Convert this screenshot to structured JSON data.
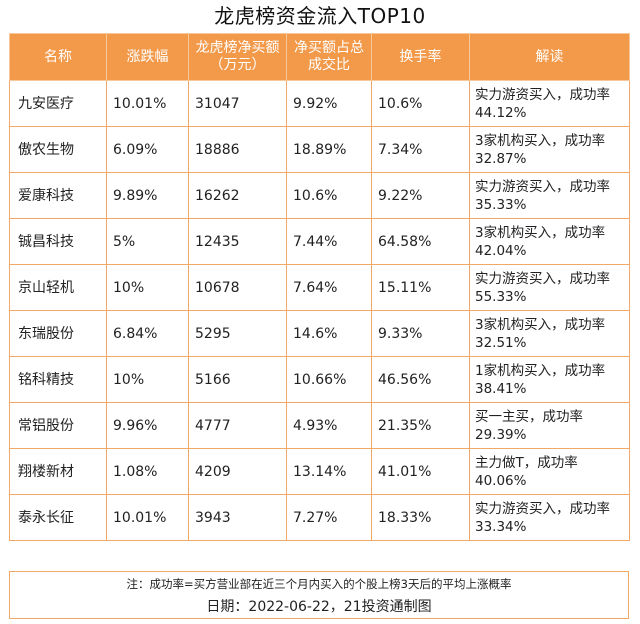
{
  "title": "龙虎榜资金流入TOP10",
  "headers": [
    "名称",
    "涨跌幅",
    "龙虎榜净买额（万元）",
    "净买额占总成交比",
    "换手率",
    "解读"
  ],
  "rows": [
    {
      "name": "九安医疗",
      "change": "10.01%",
      "net_buy": "31047",
      "ratio": "9.92%",
      "turnover": "10.6%",
      "note": "实力游资买入，成功率44.12%"
    },
    {
      "name": "傲农生物",
      "change": "6.09%",
      "net_buy": "18886",
      "ratio": "18.89%",
      "turnover": "7.34%",
      "note": "3家机构买入，成功率32.87%"
    },
    {
      "name": "爱康科技",
      "change": "9.89%",
      "net_buy": "16262",
      "ratio": "10.6%",
      "turnover": "9.22%",
      "note": "实力游资买入，成功率35.33%"
    },
    {
      "name": "铖昌科技",
      "change": "5%",
      "net_buy": "12435",
      "ratio": "7.44%",
      "turnover": "64.58%",
      "note": "3家机构买入，成功率42.04%"
    },
    {
      "name": "京山轻机",
      "change": "10%",
      "net_buy": "10678",
      "ratio": "7.64%",
      "turnover": "15.11%",
      "note": "实力游资买入，成功率55.33%"
    },
    {
      "name": "东瑞股份",
      "change": "6.84%",
      "net_buy": "5295",
      "ratio": "14.6%",
      "turnover": "9.33%",
      "note": "3家机构买入，成功率32.51%"
    },
    {
      "name": "铭科精技",
      "change": "10%",
      "net_buy": "5166",
      "ratio": "10.66%",
      "turnover": "46.56%",
      "note": "1家机构买入，成功率38.41%"
    },
    {
      "name": "常铝股份",
      "change": "9.96%",
      "net_buy": "4777",
      "ratio": "4.93%",
      "turnover": "21.35%",
      "note": "买一主买，成功率29.39%"
    },
    {
      "name": "翔楼新材",
      "change": "1.08%",
      "net_buy": "4209",
      "ratio": "13.14%",
      "turnover": "41.01%",
      "note": "主力做T，成功率40.06%"
    },
    {
      "name": "泰永长征",
      "change": "10.01%",
      "net_buy": "3943",
      "ratio": "7.27%",
      "turnover": "18.33%",
      "note": "实力游资买入，成功率33.34%"
    }
  ],
  "footnote": "注：成功率=买方营业部在近三个月内买入的个股上榜3天后的平均上涨概率",
  "dateline": "日期：2022-06-22，21投资通制图",
  "colors": {
    "header_bg": "#f2994a",
    "border": "#f2a869"
  }
}
